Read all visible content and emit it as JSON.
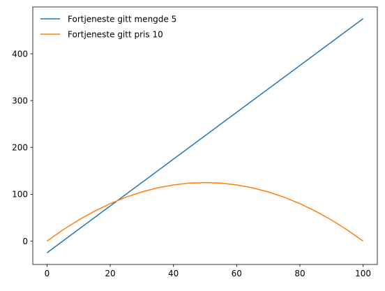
{
  "chart_data": {
    "type": "line",
    "title": "",
    "xlabel": "",
    "ylabel": "",
    "xlim": [
      -4.5,
      104.5
    ],
    "ylim": [
      -50,
      500
    ],
    "grid": false,
    "legend_placement": "top-left",
    "x_ticks": [
      0,
      20,
      40,
      60,
      80,
      100
    ],
    "y_ticks": [
      0,
      100,
      200,
      300,
      400
    ],
    "series": [
      {
        "name": "Fortjeneste gitt mengde 5",
        "color": "#1f77b4",
        "x": [
          0,
          100
        ],
        "y": [
          -25,
          475
        ]
      },
      {
        "name": "Fortjeneste gitt pris 10",
        "color": "#ff7f0e",
        "x": [
          0,
          5,
          10,
          15,
          20,
          25,
          30,
          35,
          40,
          45,
          50,
          55,
          60,
          65,
          70,
          75,
          80,
          85,
          90,
          95,
          100
        ],
        "y": [
          0,
          23.75,
          45,
          63.75,
          80,
          93.75,
          105,
          113.75,
          120,
          123.75,
          125,
          123.75,
          120,
          113.75,
          105,
          93.75,
          80,
          63.75,
          45,
          23.75,
          0
        ]
      }
    ]
  }
}
